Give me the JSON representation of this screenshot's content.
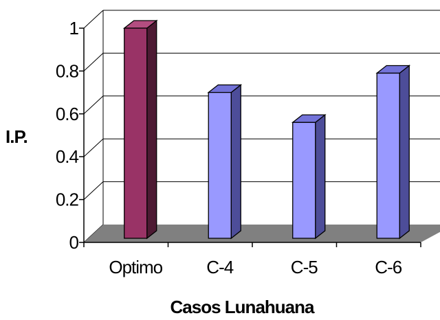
{
  "chart_data": {
    "type": "bar",
    "title": "",
    "xlabel": "Casos Lunahuana",
    "ylabel": "I.P.",
    "categories": [
      "Optimo",
      "C-4",
      "C-5",
      "C-6"
    ],
    "values": [
      1.0,
      0.7,
      0.56,
      0.79
    ],
    "ylim": [
      0,
      1
    ],
    "yticks": [
      "0",
      "0.2",
      "0.4",
      "0.6",
      "0.8",
      "1"
    ],
    "grid": true,
    "legend": "none",
    "style": "3d-column",
    "colors": {
      "highlight_front": "#993366",
      "highlight_side": "#4d1a33",
      "highlight_top": "#b34d80",
      "default_front": "#9999ff",
      "default_side": "#4d4d99",
      "default_top": "#7373d9",
      "floor": "#808080",
      "gridline": "#000000"
    }
  }
}
